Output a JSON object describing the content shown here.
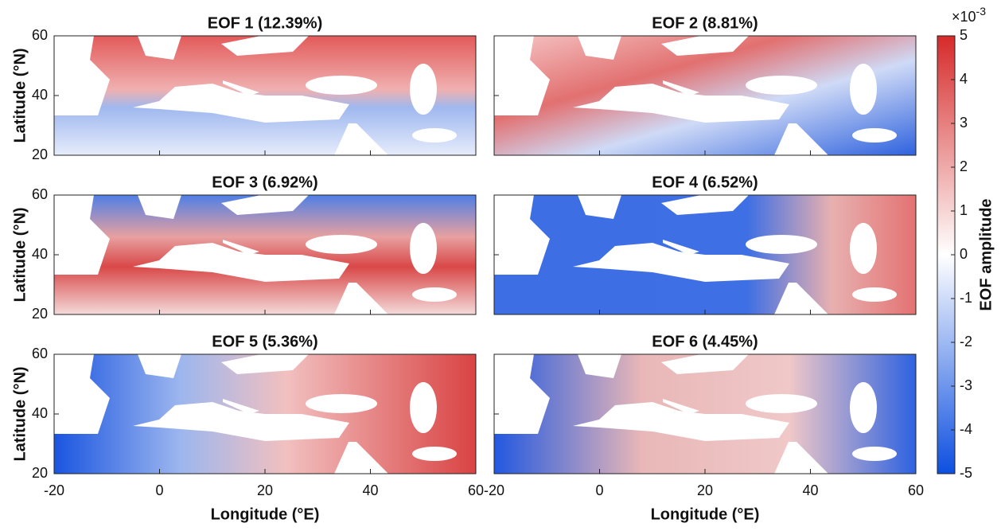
{
  "panels": [
    {
      "title": "EOF 1  (12.39%)"
    },
    {
      "title": "EOF 2  (8.81%)"
    },
    {
      "title": "EOF 3  (6.92%)"
    },
    {
      "title": "EOF 4  (6.52%)"
    },
    {
      "title": "EOF 5  (5.36%)"
    },
    {
      "title": "EOF 6  (4.45%)"
    }
  ],
  "y_axis": {
    "label": "Latitude (°N)",
    "lim": [
      20,
      60
    ],
    "ticks": [
      20,
      40,
      60
    ]
  },
  "x_axis": {
    "label": "Longitude (°E)",
    "lim": [
      -20,
      60
    ],
    "ticks": [
      -20,
      0,
      20,
      40,
      60
    ]
  },
  "colorbar": {
    "label": "EOF amplitude",
    "multiplier": "×10",
    "exponent": "-3",
    "lim": [
      -5,
      5
    ],
    "ticks": [
      -5,
      -4,
      -3,
      -2,
      -1,
      0,
      1,
      2,
      3,
      4,
      5
    ],
    "colors": [
      "#0d4fe0",
      "#ffffff",
      "#d62a2a"
    ]
  }
}
